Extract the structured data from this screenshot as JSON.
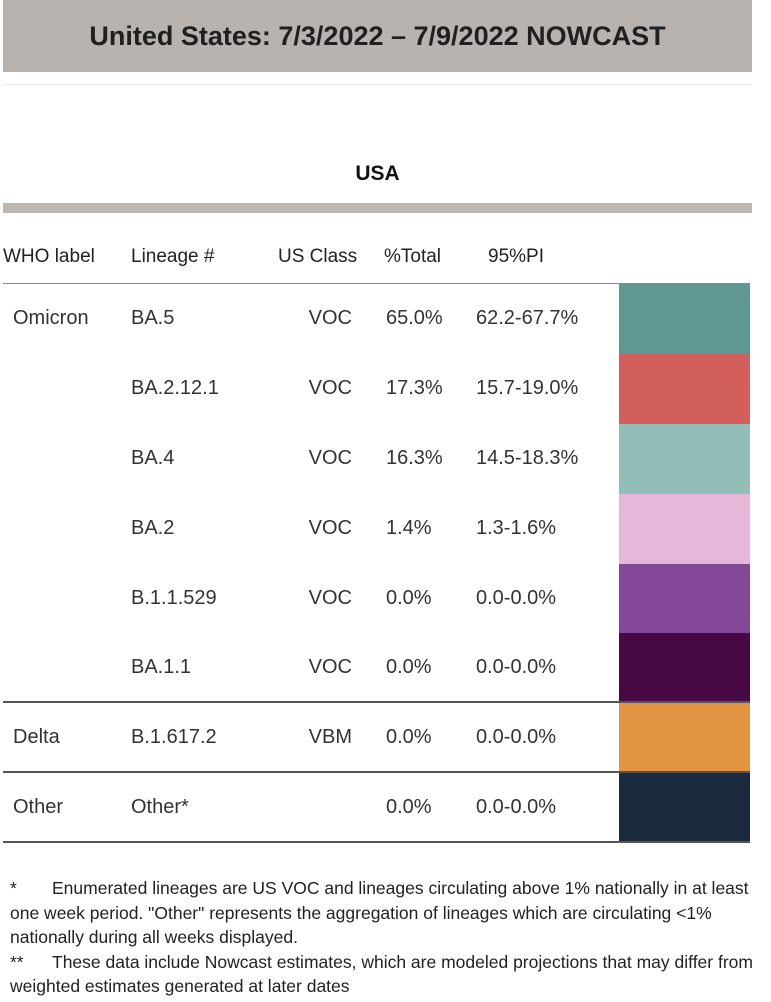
{
  "header": {
    "title": "United States: 7/3/2022 – 7/9/2022 NOWCAST"
  },
  "region": "USA",
  "columns": {
    "who_label": "WHO label",
    "lineage": "Lineage #",
    "us_class": "US Class",
    "pct_total": "%Total",
    "pi": "95%PI"
  },
  "rows": [
    {
      "who": "Omicron",
      "lineage": "BA.5",
      "us_class": "VOC",
      "pct": "65.0%",
      "pi": "62.2-67.7%",
      "color": "#5f9893"
    },
    {
      "who": "",
      "lineage": "BA.2.12.1",
      "us_class": "VOC",
      "pct": "17.3%",
      "pi": "15.7-19.0%",
      "color": "#d35f5d"
    },
    {
      "who": "",
      "lineage": "BA.4",
      "us_class": "VOC",
      "pct": "16.3%",
      "pi": "14.5-18.3%",
      "color": "#93beb7"
    },
    {
      "who": "",
      "lineage": "BA.2",
      "us_class": "VOC",
      "pct": "1.4%",
      "pi": "1.3-1.6%",
      "color": "#e6b7d8"
    },
    {
      "who": "",
      "lineage": "B.1.1.529",
      "us_class": "VOC",
      "pct": "0.0%",
      "pi": "0.0-0.0%",
      "color": "#824797"
    },
    {
      "who": "",
      "lineage": "BA.1.1",
      "us_class": "VOC",
      "pct": "0.0%",
      "pi": "0.0-0.0%",
      "color": "#480843"
    },
    {
      "who": "Delta",
      "lineage": "B.1.617.2",
      "us_class": "VBM",
      "pct": "0.0%",
      "pi": "0.0-0.0%",
      "color": "#e39442"
    },
    {
      "who": "Other",
      "lineage": "Other*",
      "us_class": "",
      "pct": "0.0%",
      "pi": "0.0-0.0%",
      "color": "#1c2a40"
    }
  ],
  "footnotes": {
    "note1_mark": "*",
    "note1_text": "Enumerated lineages are US VOC and lineages circulating above 1% nationally in at least one week period. \"Other\" represents the aggregation of lineages which are circulating <1% nationally during all weeks displayed.",
    "note2_mark": "**",
    "note2_text": "These data include Nowcast estimates, which are modeled projections that may differ from weighted estimates generated at later dates"
  }
}
